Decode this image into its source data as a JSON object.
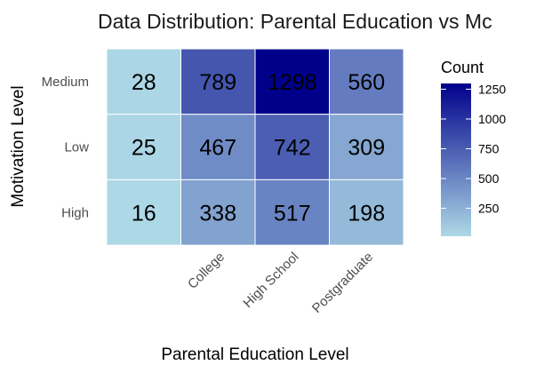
{
  "chart_data": {
    "type": "heatmap",
    "title": "Data Distribution: Parental Education vs Mc",
    "xlabel": "Parental Education Level",
    "ylabel": "Motivation Level",
    "x_categories": [
      "",
      "College",
      "High School",
      "Postgraduate"
    ],
    "y_categories": [
      "Medium",
      "Low",
      "High"
    ],
    "values": [
      [
        28,
        789,
        1298,
        560
      ],
      [
        25,
        467,
        742,
        309
      ],
      [
        16,
        338,
        517,
        198
      ]
    ],
    "color_scale": {
      "low": "#add8e6",
      "high": "#00008b",
      "min": 16,
      "max": 1298
    },
    "legend": {
      "title": "Count",
      "ticks": [
        250,
        500,
        750,
        1000,
        1250
      ],
      "placement": "right"
    }
  }
}
